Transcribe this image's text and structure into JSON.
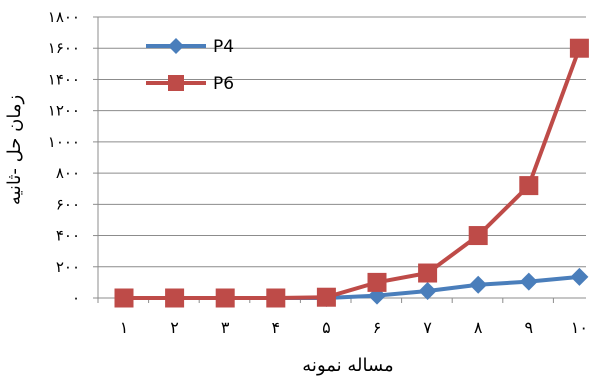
{
  "chart_data": {
    "type": "line",
    "title": "",
    "xlabel": "مساله نمونه",
    "ylabel": "زمان حل -ثانیه",
    "categories": [
      "۱",
      "۲",
      "۳",
      "۴",
      "۵",
      "۶",
      "۷",
      "۸",
      "۹",
      "۱۰"
    ],
    "x": [
      1,
      2,
      3,
      4,
      5,
      6,
      7,
      8,
      9,
      10
    ],
    "ylim": [
      0,
      1800
    ],
    "yticks": [
      0,
      200,
      400,
      600,
      800,
      1000,
      1200,
      1400,
      1600,
      1800
    ],
    "ytick_labels": [
      "۰",
      "۲۰۰",
      "۴۰۰",
      "۶۰۰",
      "۸۰۰",
      "۱۰۰۰",
      "۱۲۰۰",
      "۱۴۰۰",
      "۱۶۰۰",
      "۱۸۰۰"
    ],
    "grid": true,
    "legend_position": "top-left",
    "series": [
      {
        "name": "P4",
        "marker": "diamond",
        "color": "#4A7EBB",
        "values": [
          0,
          0,
          0,
          0,
          0,
          15,
          45,
          85,
          105,
          135
        ]
      },
      {
        "name": "P6",
        "marker": "square",
        "color": "#BE4B48",
        "values": [
          0,
          0,
          0,
          0,
          5,
          100,
          160,
          400,
          720,
          1600
        ]
      }
    ]
  }
}
